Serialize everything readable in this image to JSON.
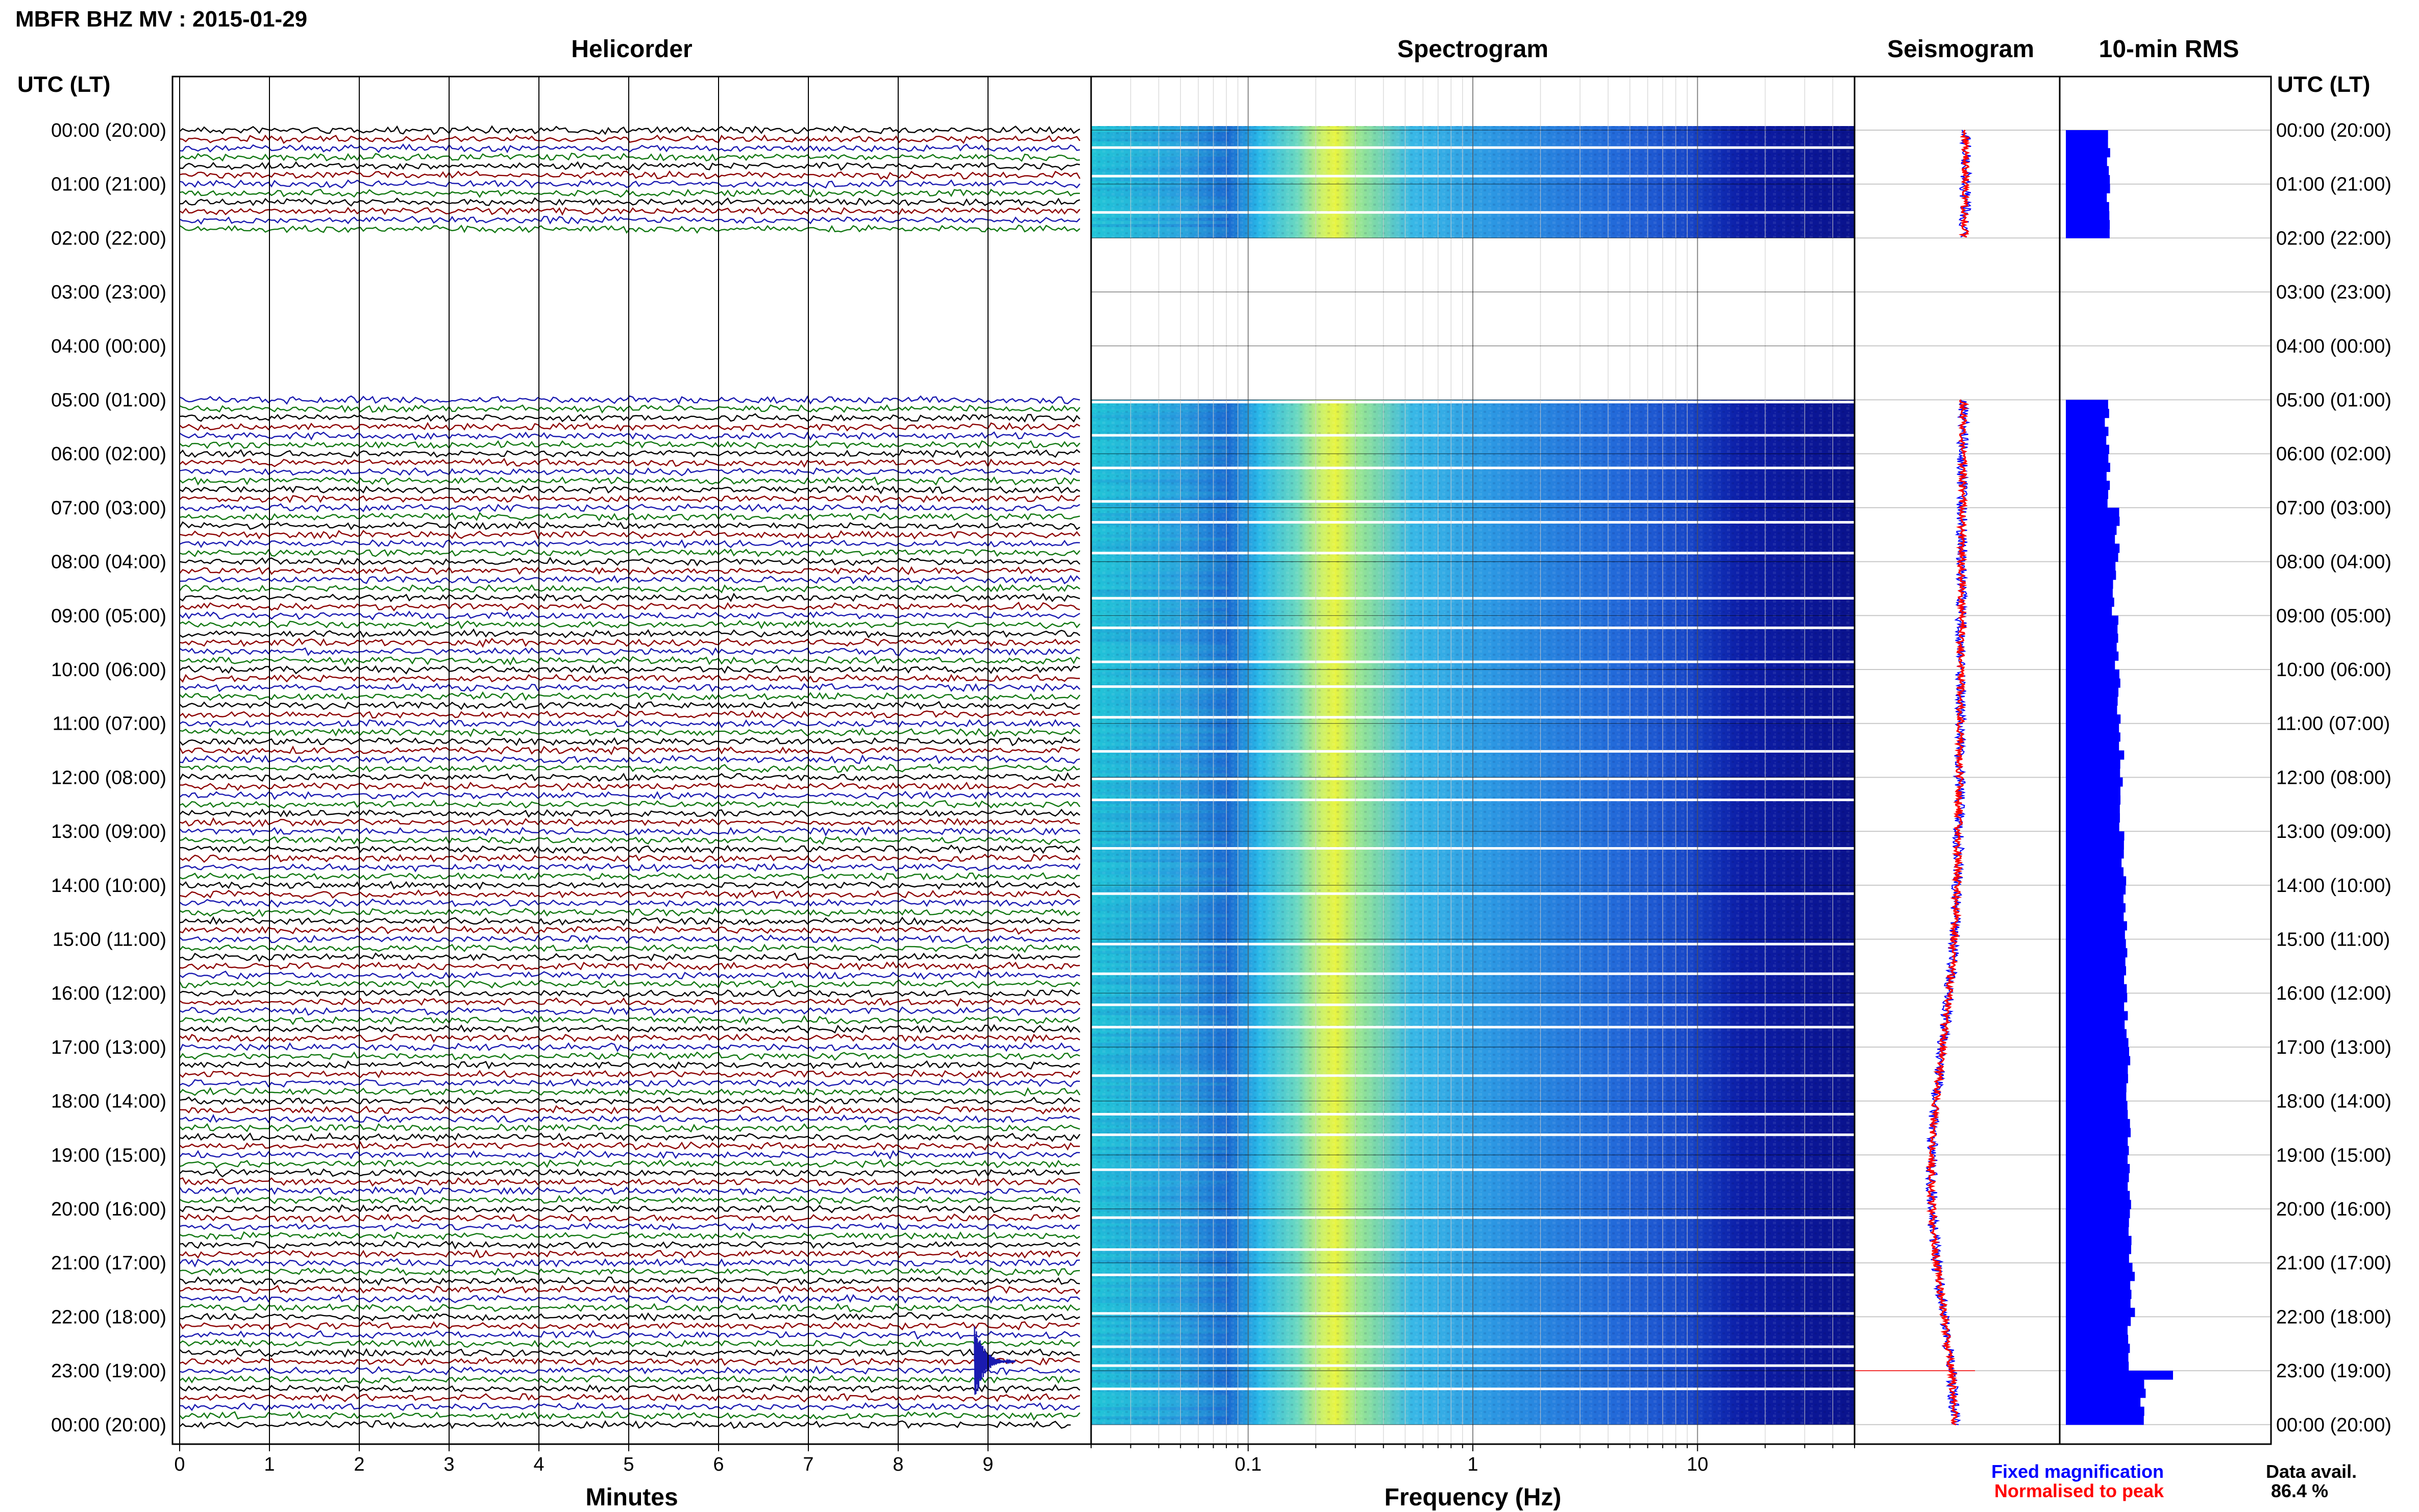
{
  "header": {
    "title": "MBFR BHZ MV : 2015-01-29"
  },
  "panels": {
    "helicorder": "Helicorder",
    "spectrogram": "Spectrogram",
    "seismogram": "Seismogram",
    "rms": "10-min RMS"
  },
  "axis_titles": {
    "left": "UTC (LT)",
    "right": "UTC (LT)"
  },
  "footer": {
    "legend_fixed": "Fixed magnification",
    "legend_norm": "Normalised to peak",
    "data_avail_label": "Data avail.",
    "data_avail_value": "86.4 %"
  },
  "colors": {
    "trace": [
      "#000000",
      "#8b0000",
      "#1a1ab0",
      "#117711"
    ],
    "fixed": "#0000ff",
    "norm": "#ff0000",
    "rms_bar": "#0000ff"
  },
  "chart_data": [
    {
      "type": "line",
      "name": "helicorder",
      "xlabel": "Minutes",
      "x_ticks": [
        "0",
        "1",
        "2",
        "3",
        "4",
        "5",
        "6",
        "7",
        "8",
        "9"
      ],
      "xlim": [
        0,
        10
      ],
      "y_labels": [
        "00:00 (20:00)",
        "01:00 (21:00)",
        "02:00 (22:00)",
        "03:00 (23:00)",
        "04:00 (00:00)",
        "05:00 (01:00)",
        "06:00 (02:00)",
        "07:00 (03:00)",
        "08:00 (04:00)",
        "09:00 (05:00)",
        "10:00 (06:00)",
        "11:00 (07:00)",
        "12:00 (08:00)",
        "13:00 (09:00)",
        "14:00 (10:00)",
        "15:00 (11:00)",
        "16:00 (12:00)",
        "17:00 (13:00)",
        "18:00 (14:00)",
        "19:00 (15:00)",
        "20:00 (16:00)",
        "21:00 (17:00)",
        "22:00 (18:00)",
        "23:00 (19:00)",
        "00:00 (20:00)"
      ],
      "rows_per_hour": 6,
      "data_gaps_hours": [
        [
          2.0,
          5.0
        ]
      ],
      "event": {
        "hour": 22.83,
        "minute": 8.85
      }
    },
    {
      "type": "heatmap",
      "name": "spectrogram",
      "xlabel": "Frequency (Hz)",
      "x_scale": "log",
      "x_ticks": [
        "0.1",
        "1",
        "10"
      ],
      "xlim": [
        0.02,
        50
      ],
      "peak_band_hz": [
        0.2,
        0.3
      ],
      "data_gaps_hours": [
        [
          2.0,
          5.0
        ]
      ]
    },
    {
      "type": "line",
      "name": "seismogram",
      "note_series": [
        "Fixed magnification",
        "Normalised to peak"
      ]
    },
    {
      "type": "bar",
      "name": "10-min RMS",
      "orientation": "horizontal",
      "hours_start": [
        0,
        1,
        5,
        6,
        7,
        8,
        9,
        10,
        11,
        12,
        13,
        14,
        15,
        16,
        17,
        18,
        19,
        20,
        21,
        22,
        23
      ],
      "relative_values": [
        0.4,
        0.4,
        0.38,
        0.4,
        0.48,
        0.45,
        0.48,
        0.5,
        0.52,
        0.52,
        0.54,
        0.55,
        0.55,
        0.56,
        0.58,
        0.58,
        0.6,
        0.6,
        0.62,
        0.6,
        0.72
      ],
      "spike_hour": 23.0,
      "spike_value": 1.0
    }
  ]
}
